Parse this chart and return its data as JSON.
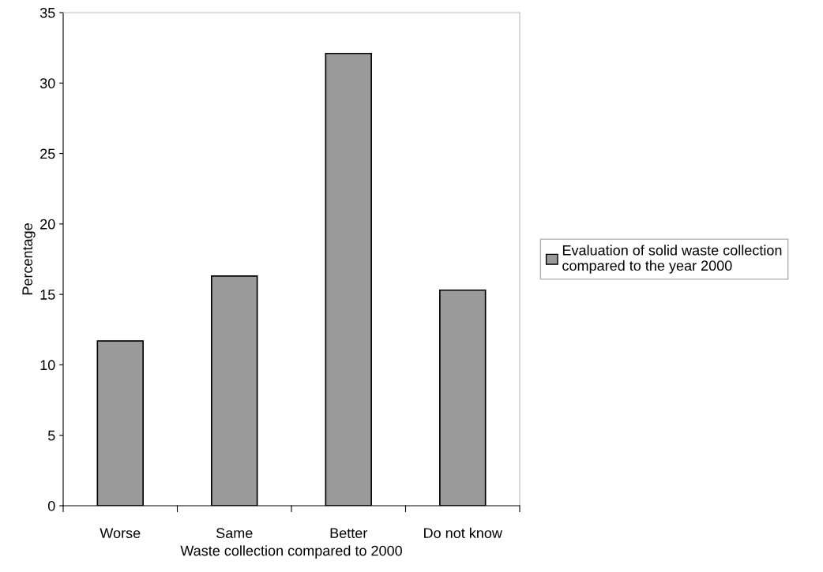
{
  "chart_data": {
    "type": "bar",
    "xlabel": "Waste collection compared to 2000",
    "ylabel": "Percentage",
    "categories": [
      "Worse",
      "Same",
      "Better",
      "Do not know"
    ],
    "series": [
      {
        "name": "Evaluation of solid waste collection\ncompared to the year 2000",
        "color": "#9a9a9a",
        "values": [
          11.7,
          16.3,
          32.1,
          15.3
        ]
      }
    ],
    "ylim": [
      0,
      35
    ],
    "yticks": [
      0,
      5,
      10,
      15,
      20,
      25,
      30,
      35
    ],
    "grid": false,
    "legend": "right"
  }
}
